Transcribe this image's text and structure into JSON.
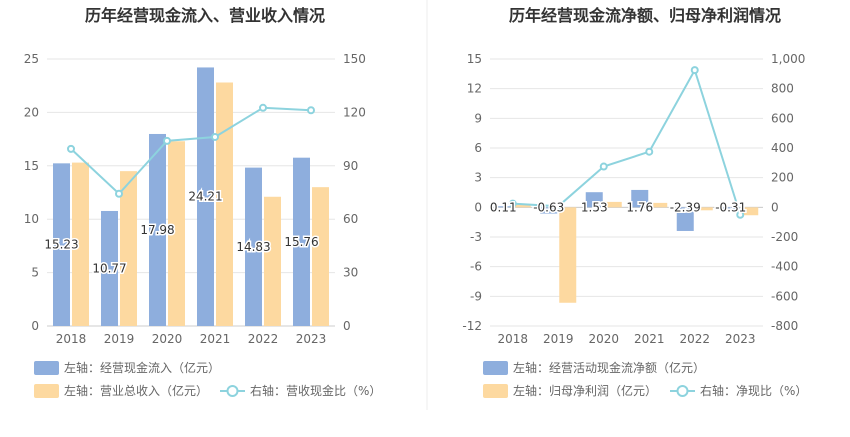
{
  "colors": {
    "bar_a": "#8eaedd",
    "bar_b": "#fdd9a0",
    "line": "#8dd3de"
  },
  "chart_data": [
    {
      "type": "bar",
      "title": "历年经营现金流入、营业收入情况",
      "categories": [
        "2018",
        "2019",
        "2020",
        "2021",
        "2022",
        "2023"
      ],
      "left_axis": {
        "ylim": [
          0,
          25
        ],
        "ticks": [
          "0",
          "5",
          "10",
          "15",
          "20",
          "25"
        ]
      },
      "right_axis": {
        "ylim": [
          0,
          150
        ],
        "ticks": [
          "0",
          "30",
          "60",
          "90",
          "120",
          "150"
        ]
      },
      "series": [
        {
          "name": "左轴：经营现金流入（亿元）",
          "axis": "left",
          "kind": "bar",
          "values": [
            15.23,
            10.77,
            17.98,
            24.21,
            14.83,
            15.76
          ],
          "labels": [
            "15.23",
            "10.77",
            "17.98",
            "24.21",
            "14.83",
            "15.76"
          ]
        },
        {
          "name": "左轴：营业总收入（亿元）",
          "axis": "left",
          "kind": "bar",
          "values": [
            15.3,
            14.5,
            17.3,
            22.8,
            12.1,
            13.0
          ]
        },
        {
          "name": "右轴：营收现金比（%）",
          "axis": "right",
          "kind": "line",
          "values": [
            99.5,
            74.3,
            104.0,
            106.2,
            122.6,
            121.2
          ]
        }
      ],
      "legend_position": "bottom-left",
      "grid": true
    },
    {
      "type": "bar",
      "title": "历年经营现金流净额、归母净利润情况",
      "categories": [
        "2018",
        "2019",
        "2020",
        "2021",
        "2022",
        "2023"
      ],
      "left_axis": {
        "ylim": [
          -12,
          15
        ],
        "ticks": [
          "-12",
          "-9",
          "-6",
          "-3",
          "0",
          "3",
          "6",
          "9",
          "12",
          "15"
        ]
      },
      "right_axis": {
        "ylim": [
          -800,
          1000
        ],
        "ticks": [
          "-800",
          "-600",
          "-400",
          "-200",
          "0",
          "200",
          "400",
          "600",
          "800",
          "1,000"
        ]
      },
      "series": [
        {
          "name": "左轴：经营活动现金流净额（亿元）",
          "axis": "left",
          "kind": "bar",
          "values": [
            0.11,
            -0.63,
            1.53,
            1.76,
            -2.39,
            -0.31
          ],
          "labels": [
            "0.11",
            "-0.63",
            "1.53",
            "1.76",
            "-2.39",
            "-0.31"
          ]
        },
        {
          "name": "左轴：归母净利润（亿元）",
          "axis": "left",
          "kind": "bar",
          "values": [
            0.25,
            -9.65,
            0.55,
            0.45,
            -0.3,
            -0.8
          ]
        },
        {
          "name": "右轴：净现比（%）",
          "axis": "right",
          "kind": "line",
          "values": [
            25,
            7,
            275,
            375,
            925,
            -50
          ]
        }
      ],
      "legend_position": "bottom-left",
      "grid": true
    }
  ]
}
